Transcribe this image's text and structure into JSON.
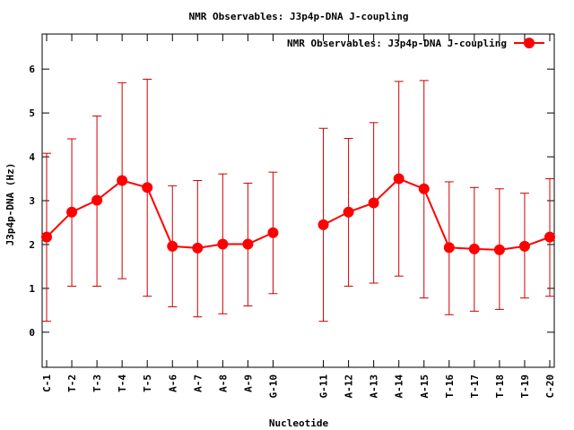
{
  "chart_data": {
    "type": "line",
    "title": "NMR Observables: J3p4p-DNA J-coupling",
    "xlabel": "Nucleotide",
    "ylabel": "J3p4p-DNA (Hz)",
    "ylim": [
      -0.8,
      6.8
    ],
    "yticks": [
      0,
      1,
      2,
      3,
      4,
      5,
      6
    ],
    "grid": false,
    "legend_position": "top-right",
    "series_color": "#ff0000",
    "errorbar_color": "#cc0000",
    "categories": [
      "C-1",
      "T-2",
      "T-3",
      "T-4",
      "T-5",
      "A-6",
      "A-7",
      "A-8",
      "A-9",
      "G-10",
      "G-11",
      "A-12",
      "A-13",
      "A-14",
      "A-15",
      "T-16",
      "T-17",
      "T-18",
      "T-19",
      "C-20"
    ],
    "x_positions": [
      1,
      2,
      3,
      4,
      5,
      6,
      7,
      8,
      9,
      10,
      12,
      13,
      14,
      15,
      16,
      17,
      18,
      19,
      20,
      21
    ],
    "xlim": [
      1,
      21
    ],
    "series": [
      {
        "name": "NMR Observables: J3p4p-DNA J-coupling",
        "segments": [
          [
            0,
            1,
            2,
            3,
            4,
            5,
            6,
            7,
            8,
            9
          ],
          [
            10,
            11,
            12,
            13,
            14,
            15,
            16,
            17,
            18,
            19
          ]
        ],
        "values": [
          2.17,
          2.74,
          3.01,
          3.46,
          3.3,
          1.96,
          1.92,
          2.01,
          2.01,
          2.27,
          2.45,
          2.74,
          2.95,
          3.5,
          3.27,
          1.93,
          1.9,
          1.88,
          1.96,
          2.17
        ],
        "err_low": [
          0.25,
          1.05,
          1.05,
          1.22,
          0.82,
          0.58,
          0.35,
          0.42,
          0.6,
          0.88,
          0.25,
          1.05,
          1.12,
          1.28,
          0.78,
          0.4,
          0.48,
          0.52,
          0.78,
          0.82
        ],
        "err_high": [
          4.08,
          4.41,
          4.93,
          5.69,
          5.77,
          3.34,
          3.46,
          3.61,
          3.4,
          3.65,
          4.65,
          4.42,
          4.78,
          5.72,
          5.74,
          3.43,
          3.3,
          3.27,
          3.17,
          3.5
        ]
      }
    ]
  }
}
